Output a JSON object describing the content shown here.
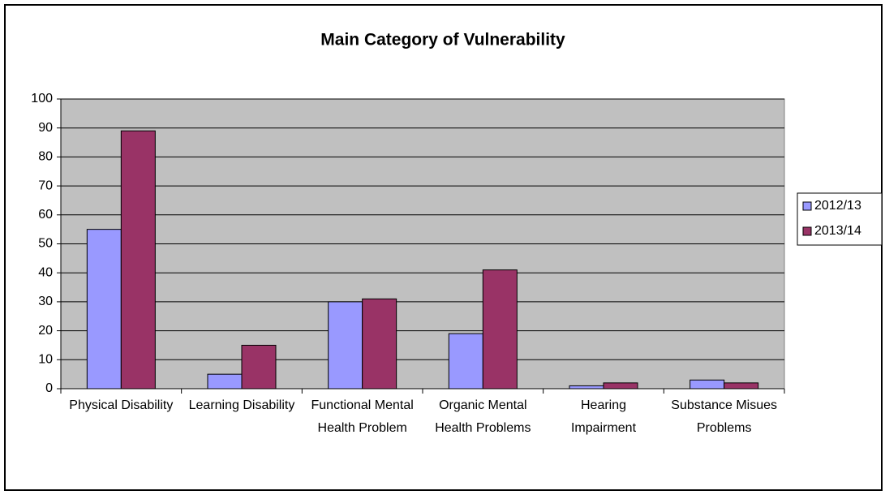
{
  "chart_data": {
    "type": "bar",
    "title": "Main Category of Vulnerability",
    "categories": [
      "Physical Disability",
      "Learning Disability",
      "Functional Mental Health Problem",
      "Organic Mental Health Problems",
      "Hearing Impairment",
      "Substance Misues Problems"
    ],
    "series": [
      {
        "name": "2012/13",
        "color": "#9999ff",
        "values": [
          55,
          5,
          30,
          19,
          1,
          3
        ]
      },
      {
        "name": "2013/14",
        "color": "#993366",
        "values": [
          89,
          15,
          31,
          41,
          2,
          2
        ]
      }
    ],
    "ylim": [
      0,
      100
    ],
    "yticks": [
      0,
      10,
      20,
      30,
      40,
      50,
      60,
      70,
      80,
      90,
      100
    ],
    "grid": true,
    "legend": "right"
  }
}
